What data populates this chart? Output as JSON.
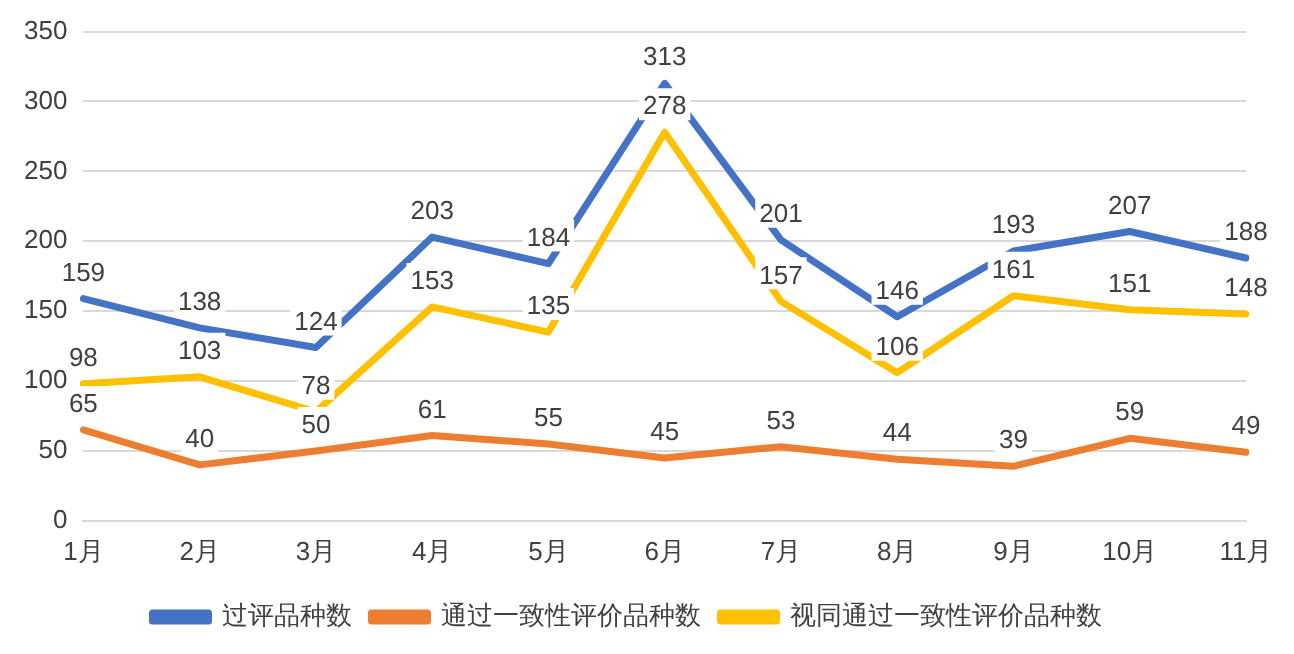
{
  "chart_data": {
    "type": "line",
    "categories": [
      "1月",
      "2月",
      "3月",
      "4月",
      "5月",
      "6月",
      "7月",
      "8月",
      "9月",
      "10月",
      "11月"
    ],
    "series": [
      {
        "name": "过评品种数",
        "color": "#4472c4",
        "values": [
          159,
          138,
          124,
          203,
          184,
          313,
          201,
          146,
          193,
          207,
          188
        ]
      },
      {
        "name": "通过一致性评价品种数",
        "color": "#ed7d31",
        "values": [
          65,
          40,
          50,
          61,
          55,
          45,
          53,
          44,
          39,
          59,
          49
        ]
      },
      {
        "name": "视同通过一致性评价品种数",
        "color": "#ffc000",
        "values": [
          98,
          103,
          78,
          153,
          135,
          278,
          157,
          106,
          161,
          151,
          148
        ]
      }
    ],
    "ylim": [
      0,
      350
    ],
    "yticks": [
      0,
      50,
      100,
      150,
      200,
      250,
      300,
      350
    ],
    "grid": "y",
    "legend": "bottom",
    "data_labels": true,
    "marker": "none",
    "line_style": "solid"
  }
}
